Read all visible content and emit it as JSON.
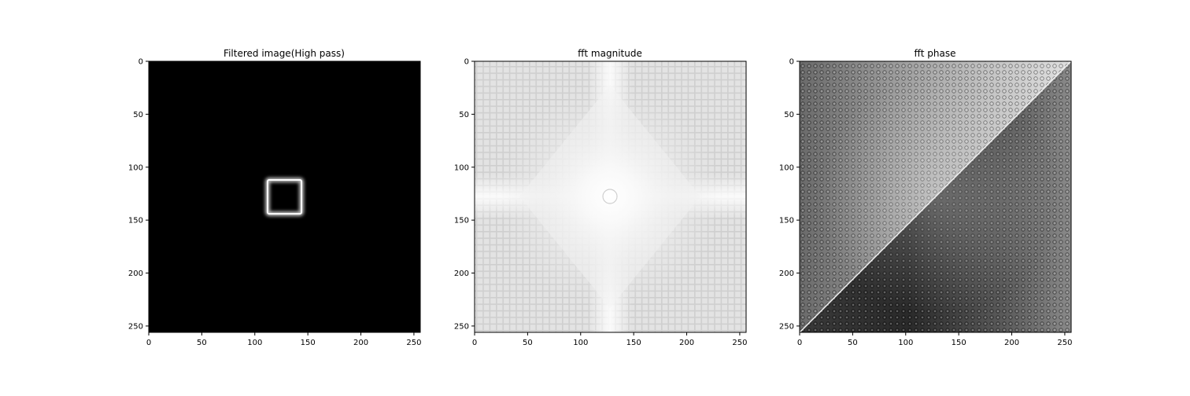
{
  "chart_data": [
    {
      "type": "heatmap",
      "title": "Filtered image(High pass)",
      "xlabel": "",
      "ylabel": "",
      "xlim": [
        0,
        256
      ],
      "ylim": [
        256,
        0
      ],
      "xticks": [
        0,
        50,
        100,
        150,
        200,
        250
      ],
      "yticks": [
        0,
        50,
        100,
        150,
        200,
        250
      ],
      "colormap": "gray",
      "content": "black background with a bright square outline",
      "square_outline": {
        "x_range": [
          112,
          144
        ],
        "y_range": [
          112,
          144
        ]
      }
    },
    {
      "type": "heatmap",
      "title": "fft magnitude",
      "xlabel": "",
      "ylabel": "",
      "xlim": [
        0,
        256
      ],
      "ylim": [
        256,
        0
      ],
      "xticks": [
        0,
        50,
        100,
        150,
        200,
        250
      ],
      "yticks": [
        0,
        50,
        100,
        150,
        200,
        250
      ],
      "colormap": "gray",
      "content": "light gray grid pattern with bright diamond-shaped center",
      "center": [
        128,
        128
      ]
    },
    {
      "type": "heatmap",
      "title": "fft phase",
      "xlabel": "",
      "ylabel": "",
      "xlim": [
        0,
        256
      ],
      "ylim": [
        256,
        0
      ],
      "xticks": [
        0,
        50,
        100,
        150,
        200,
        250
      ],
      "yticks": [
        0,
        50,
        100,
        150,
        200,
        250
      ],
      "colormap": "gray",
      "content": "diagonal split, lighter upper-left, darker lower-right, dotted pattern",
      "center": [
        128,
        128
      ]
    }
  ]
}
